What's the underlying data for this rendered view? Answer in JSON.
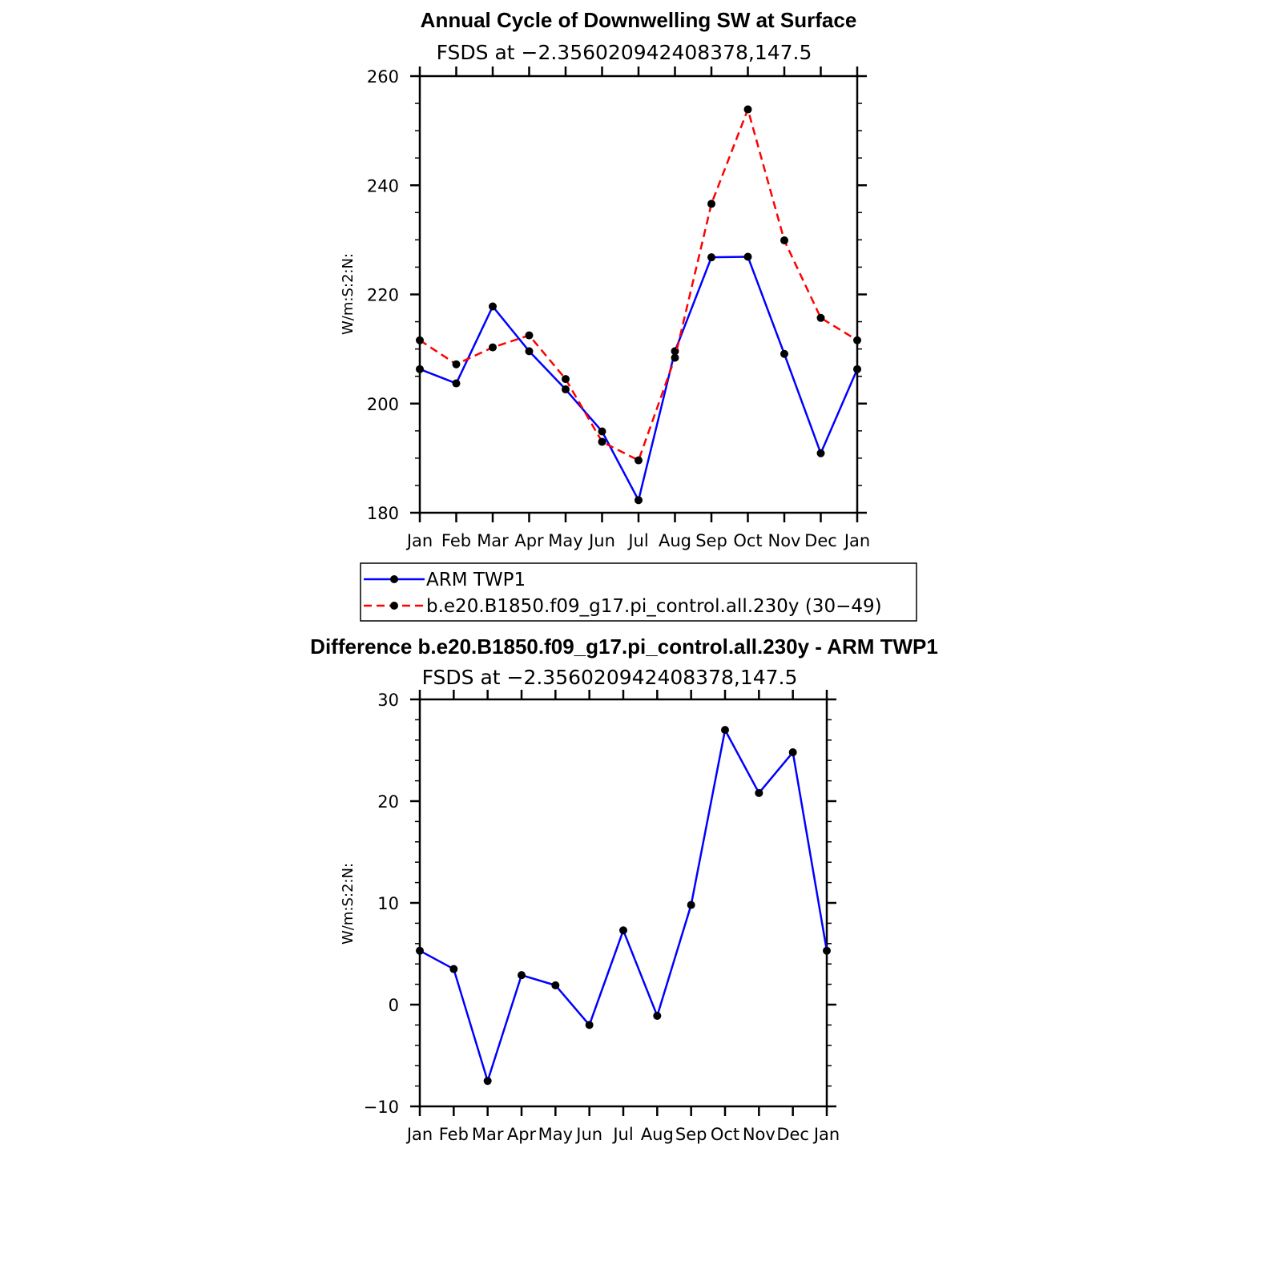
{
  "chart_data": [
    {
      "type": "line",
      "title": "Annual Cycle of Downwelling SW at Surface",
      "subtitle": "FSDS at −2.356020942408378,147.5",
      "ylabel": "W/m:S:2:N:",
      "xlabel": "",
      "categories": [
        "Jan",
        "Feb",
        "Mar",
        "Apr",
        "May",
        "Jun",
        "Jul",
        "Aug",
        "Sep",
        "Oct",
        "Nov",
        "Dec",
        "Jan"
      ],
      "ylim": [
        180,
        260
      ],
      "yticks": [
        "180",
        "200",
        "220",
        "240",
        "260"
      ],
      "grid": false,
      "legend_position": "below",
      "series": [
        {
          "name": "ARM TWP1",
          "color": "#0000ff",
          "dash": "solid",
          "values": [
            206.3,
            203.7,
            217.8,
            209.6,
            202.6,
            194.9,
            182.3,
            209.6,
            226.8,
            226.9,
            209.1,
            190.9,
            206.3
          ]
        },
        {
          "name": "b.e20.B1850.f09_g17.pi_control.all.230y (30−49)",
          "color": "#ff0000",
          "dash": "dashed",
          "values": [
            211.6,
            207.2,
            210.3,
            212.5,
            204.5,
            193.0,
            189.6,
            208.4,
            236.6,
            253.9,
            229.9,
            215.7,
            211.6
          ]
        }
      ]
    },
    {
      "type": "line",
      "title": "Difference b.e20.B1850.f09_g17.pi_control.all.230y - ARM TWP1",
      "subtitle": "FSDS at −2.356020942408378,147.5",
      "ylabel": "W/m:S:2:N:",
      "xlabel": "",
      "categories": [
        "Jan",
        "Feb",
        "Mar",
        "Apr",
        "May",
        "Jun",
        "Jul",
        "Aug",
        "Sep",
        "Oct",
        "Nov",
        "Dec",
        "Jan"
      ],
      "ylim": [
        -10,
        30
      ],
      "yticks": [
        "−10",
        "0",
        "10",
        "20",
        "30"
      ],
      "grid": false,
      "series": [
        {
          "color": "#0000ff",
          "dash": "solid",
          "values": [
            5.3,
            3.5,
            -7.5,
            2.9,
            1.9,
            -2.0,
            7.3,
            -1.1,
            9.8,
            27.0,
            20.8,
            24.8,
            5.3
          ]
        }
      ]
    }
  ]
}
